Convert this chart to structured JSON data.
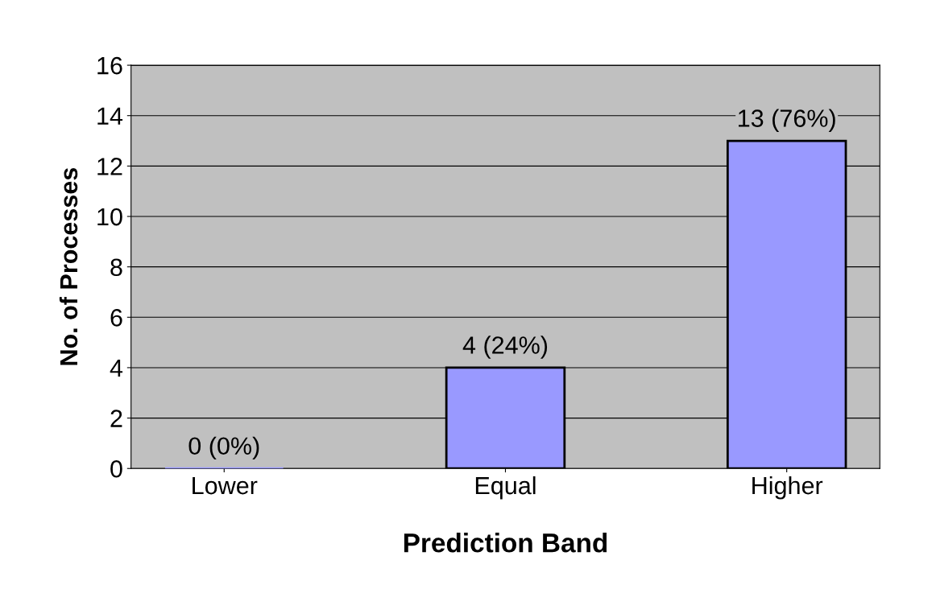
{
  "chart_data": {
    "type": "bar",
    "xlabel": "Prediction Band",
    "ylabel": "No. of Processes",
    "categories": [
      "Lower",
      "Equal",
      "Higher"
    ],
    "values": [
      0,
      4,
      13
    ],
    "value_labels": [
      "0 (0%)",
      "4 (24%)",
      "13 (76%)"
    ],
    "color": "#9999ff",
    "ylim": [
      0,
      16
    ],
    "yticks": [
      0,
      2,
      4,
      6,
      8,
      10,
      12,
      14,
      16
    ],
    "grid": "y",
    "legend": false
  }
}
